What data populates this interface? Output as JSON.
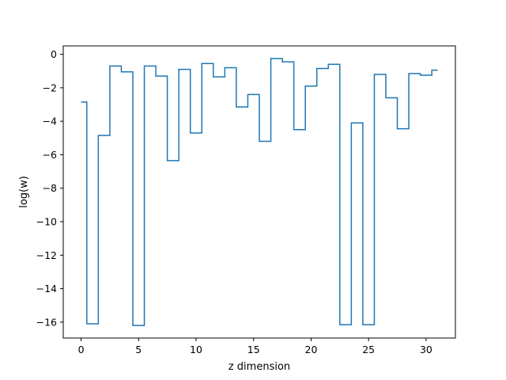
{
  "chart_data": {
    "type": "line",
    "step": "mid",
    "title": "",
    "xlabel": "z dimension",
    "ylabel": "log(w)",
    "xlim": [
      -1.55,
      32.55
    ],
    "ylim": [
      -16.95,
      0.5
    ],
    "xticks": [
      0,
      5,
      10,
      15,
      20,
      25,
      30
    ],
    "yticks": [
      0,
      -2,
      -4,
      -6,
      -8,
      -10,
      -12,
      -14,
      -16
    ],
    "grid": false,
    "series": [
      {
        "name": "",
        "color": "#1f77b4",
        "x": [
          0,
          1,
          2,
          3,
          4,
          5,
          6,
          7,
          8,
          9,
          10,
          11,
          12,
          13,
          14,
          15,
          16,
          17,
          18,
          19,
          20,
          21,
          22,
          23,
          24,
          25,
          26,
          27,
          28,
          29,
          30,
          31
        ],
        "y": [
          -2.85,
          -16.1,
          -4.85,
          -0.7,
          -1.05,
          -16.2,
          -0.7,
          -1.3,
          -6.35,
          -0.9,
          -4.7,
          -0.55,
          -1.35,
          -0.8,
          -3.15,
          -2.4,
          -5.2,
          -0.25,
          -0.45,
          -4.5,
          -1.9,
          -0.85,
          -0.6,
          -16.15,
          -4.1,
          -16.15,
          -1.2,
          -2.6,
          -4.45,
          -1.15,
          -1.25,
          -0.95
        ]
      }
    ]
  }
}
